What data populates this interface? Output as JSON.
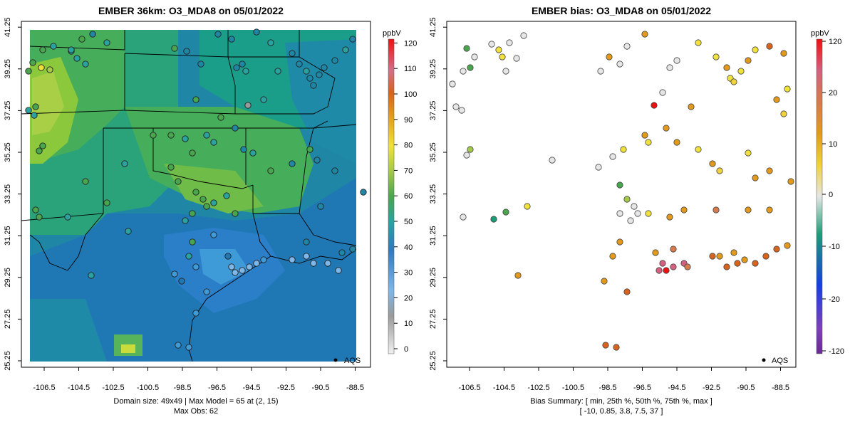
{
  "left": {
    "title": "EMBER 36km: O3_MDA8 on 05/01/2022",
    "unit": "ppbV",
    "legend": "AQS",
    "caption_line1": "Domain size: 49x49 | Max Model = 65 at (2, 15)",
    "caption_line2": "Max Obs: 62",
    "colorbar_ticks": [
      "0",
      "10",
      "20",
      "30",
      "40",
      "50",
      "60",
      "70",
      "80",
      "90",
      "100",
      "110",
      "120"
    ]
  },
  "right": {
    "title": "EMBER bias: O3_MDA8 on 05/01/2022",
    "unit": "ppbV",
    "legend": "AQS",
    "caption_line1": "Bias Summary: [ min, 25th %, 50th %, 75th %, max ]",
    "caption_line2": "[ -10,   0.85,   3.8,   7.5,   37 ]",
    "colorbar_ticks": [
      "-120",
      "-20",
      "-10",
      "0",
      "10",
      "20",
      "120"
    ]
  },
  "axes": {
    "x_ticks": [
      "-106.5",
      "-104.5",
      "-102.5",
      "-100.5",
      "-98.5",
      "-96.5",
      "-94.5",
      "-92.5",
      "-90.5",
      "-88.5"
    ],
    "y_ticks": [
      "25.25",
      "27.25",
      "29.25",
      "31.25",
      "33.25",
      "35.25",
      "37.25",
      "39.25",
      "41.25"
    ],
    "lon_range": [
      -107.5,
      -88
    ],
    "lat_range": [
      25.25,
      41.4
    ]
  },
  "colors": {
    "land_low": "#1f78b4",
    "land_mid": "#1a9e7a",
    "land_high": "#8cc83c",
    "border": "#000000"
  }
}
